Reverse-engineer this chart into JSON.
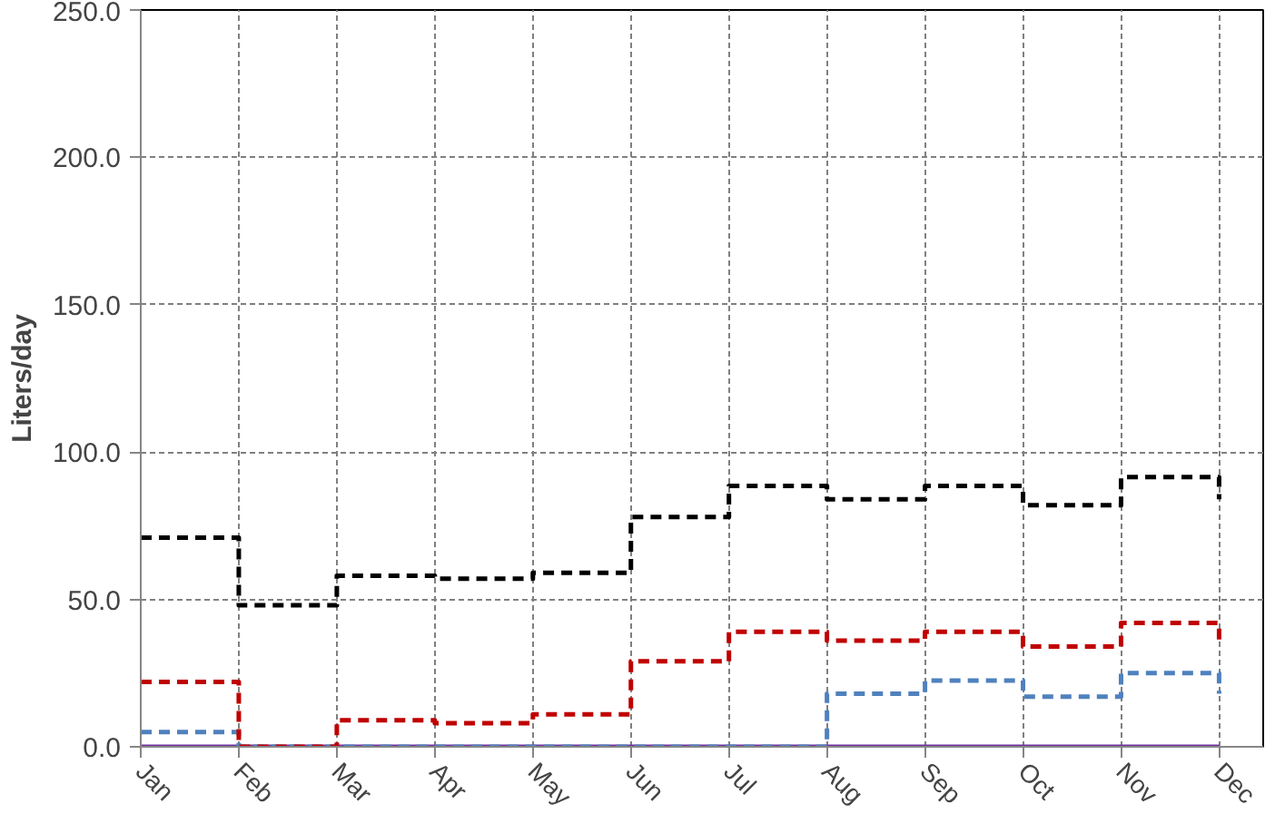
{
  "chart_data": {
    "type": "step",
    "ylabel": "Liters/day",
    "categories": [
      "Jan",
      "Feb",
      "Mar",
      "Apr",
      "May",
      "Jun",
      "Jul",
      "Aug",
      "Sep",
      "Oct",
      "Nov",
      "Dec"
    ],
    "ylim": [
      0,
      250
    ],
    "yticks": [
      {
        "value": 0,
        "label": "0.0"
      },
      {
        "value": 50,
        "label": "50.0"
      },
      {
        "value": 100,
        "label": "100.0"
      },
      {
        "value": 150,
        "label": "150.0"
      },
      {
        "value": 200,
        "label": "200.0"
      },
      {
        "value": 250,
        "label": "250.0"
      }
    ],
    "grid": true,
    "series": [
      {
        "color": "#000000",
        "line_style": "dashed",
        "values": [
          71,
          48,
          58,
          57,
          59,
          78,
          88.5,
          84,
          88.5,
          82,
          91.5,
          84
        ]
      },
      {
        "color": "#c00000",
        "line_style": "dashed",
        "values": [
          22,
          0,
          9,
          8,
          11,
          29,
          39,
          36,
          39,
          34,
          42,
          36
        ]
      },
      {
        "color": "#4f81bd",
        "line_style": "dashed",
        "values": [
          5,
          0,
          0,
          0,
          0,
          0,
          0,
          18,
          22.5,
          17,
          25,
          18
        ]
      },
      {
        "color": "#7030a0",
        "line_style": "solid",
        "values": [
          0,
          0,
          0,
          0,
          0,
          0,
          0,
          0,
          0,
          0,
          0,
          0
        ]
      }
    ]
  }
}
